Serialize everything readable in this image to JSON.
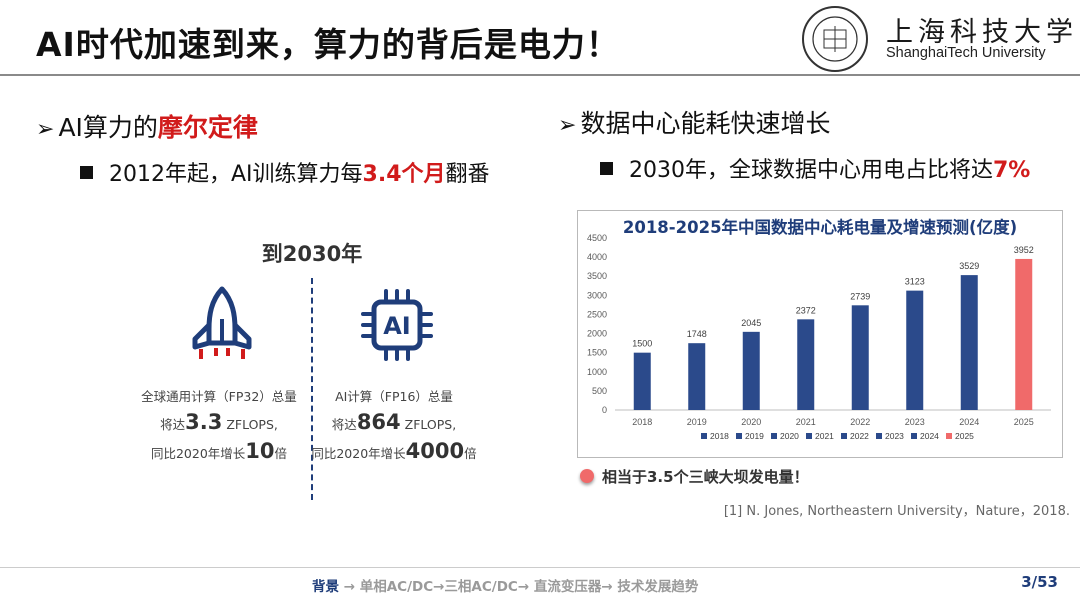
{
  "title": "AI时代加速到来，算力的背后是电力！",
  "university": {
    "name_cn": "上海科技大学",
    "name_en": "ShanghaiTech University"
  },
  "left": {
    "heading_prefix": "AI算力的",
    "heading_highlight": "摩尔定律",
    "sub_prefix": "2012年起，AI训练算力每",
    "sub_highlight": "3.4个月",
    "sub_suffix": "翻番",
    "year_label": "到2030年",
    "stat1": {
      "label": "全球通用计算（FP32）总量",
      "pre": "将达",
      "value": "3.3",
      "unit": "ZFLOPS,",
      "growth_pre": "同比2020年增长",
      "growth_value": "10",
      "growth_suffix": "倍"
    },
    "stat2": {
      "label": "AI计算（FP16）总量",
      "pre": "将达",
      "value": "864",
      "unit": "ZFLOPS,",
      "growth_pre": "同比2020年增长",
      "growth_value": "4000",
      "growth_suffix": "倍"
    }
  },
  "right": {
    "heading": "数据中心能耗快速增长",
    "sub_prefix": "2030年，全球数据中心用电占比将达",
    "sub_highlight": "7%",
    "note": "相当于3.5个三峡大坝发电量！",
    "reference": "[1] N. Jones, Northeastern University，Nature，2018."
  },
  "chart_data": {
    "type": "bar",
    "title": "2018-2025年中国数据中心耗电量及增速预测(亿度)",
    "categories": [
      "2018",
      "2019",
      "2020",
      "2021",
      "2022",
      "2023",
      "2024",
      "2025"
    ],
    "values": [
      1500,
      1748,
      2045,
      2372,
      2739,
      3123,
      3529,
      3952
    ],
    "ylim": [
      0,
      4500
    ],
    "yticks": [
      0,
      500,
      1000,
      1500,
      2000,
      2500,
      3000,
      3500,
      4000,
      4500
    ],
    "colors": {
      "default": "#2b4a8b",
      "highlight": "#f06a6a"
    },
    "highlight_index": 7,
    "legend": [
      "2018",
      "2019",
      "2020",
      "2021",
      "2022",
      "2023",
      "2024",
      "2025"
    ],
    "legend_position": "bottom",
    "grid": false
  },
  "footer": {
    "active": "背景",
    "sep": "→",
    "items": [
      "单相AC/DC→三相AC/DC→ 直流变压器→ 技术发展趋势"
    ],
    "page": "3/53"
  }
}
